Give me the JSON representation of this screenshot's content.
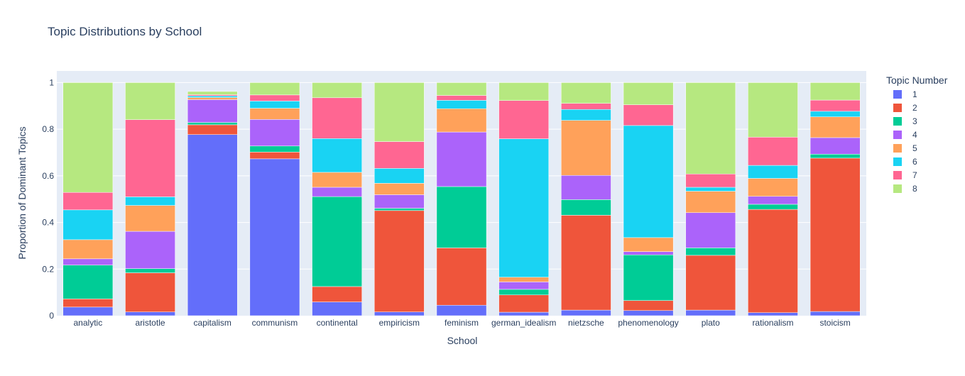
{
  "chart_data": {
    "type": "bar",
    "stacked": true,
    "title": "Topic Distributions by School",
    "xlabel": "School",
    "ylabel": "Proportion of Dominant Topics",
    "ylim": [
      0,
      1.05
    ],
    "yticks": [
      0,
      0.2,
      0.4,
      0.6,
      0.8,
      1
    ],
    "ytick_labels": [
      "0",
      "0.2",
      "0.4",
      "0.6",
      "0.8",
      "1"
    ],
    "grid": true,
    "legend": {
      "title": "Topic Number",
      "position": "right"
    },
    "categories": [
      "analytic",
      "aristotle",
      "capitalism",
      "communism",
      "continental",
      "empiricism",
      "feminism",
      "german_idealism",
      "nietzsche",
      "phenomenology",
      "plato",
      "rationalism",
      "stoicism"
    ],
    "series": [
      {
        "name": "1",
        "color": "#636efa",
        "values": [
          0.037,
          0.016,
          0.777,
          0.673,
          0.059,
          0.016,
          0.045,
          0.015,
          0.024,
          0.022,
          0.024,
          0.013,
          0.018
        ]
      },
      {
        "name": "2",
        "color": "#ef553b",
        "values": [
          0.035,
          0.168,
          0.042,
          0.029,
          0.066,
          0.435,
          0.246,
          0.074,
          0.407,
          0.043,
          0.235,
          0.443,
          0.658
        ]
      },
      {
        "name": "3",
        "color": "#00cc96",
        "values": [
          0.145,
          0.018,
          0.01,
          0.026,
          0.386,
          0.01,
          0.263,
          0.024,
          0.067,
          0.196,
          0.032,
          0.022,
          0.017
        ]
      },
      {
        "name": "4",
        "color": "#ab63fa",
        "values": [
          0.027,
          0.16,
          0.098,
          0.114,
          0.04,
          0.058,
          0.234,
          0.032,
          0.104,
          0.014,
          0.151,
          0.034,
          0.071
        ]
      },
      {
        "name": "5",
        "color": "#ffa15a",
        "values": [
          0.082,
          0.111,
          0.009,
          0.048,
          0.064,
          0.049,
          0.1,
          0.02,
          0.236,
          0.06,
          0.092,
          0.077,
          0.089
        ]
      },
      {
        "name": "6",
        "color": "#19d3f3",
        "values": [
          0.128,
          0.037,
          0.007,
          0.031,
          0.145,
          0.064,
          0.036,
          0.594,
          0.047,
          0.481,
          0.017,
          0.056,
          0.024
        ]
      },
      {
        "name": "7",
        "color": "#ff6692",
        "values": [
          0.075,
          0.331,
          0.005,
          0.026,
          0.175,
          0.115,
          0.021,
          0.164,
          0.026,
          0.089,
          0.057,
          0.121,
          0.048
        ]
      },
      {
        "name": "8",
        "color": "#b6e880",
        "values": [
          0.471,
          0.159,
          0.014,
          0.053,
          0.065,
          0.253,
          0.055,
          0.077,
          0.089,
          0.095,
          0.392,
          0.234,
          0.075
        ]
      }
    ]
  }
}
